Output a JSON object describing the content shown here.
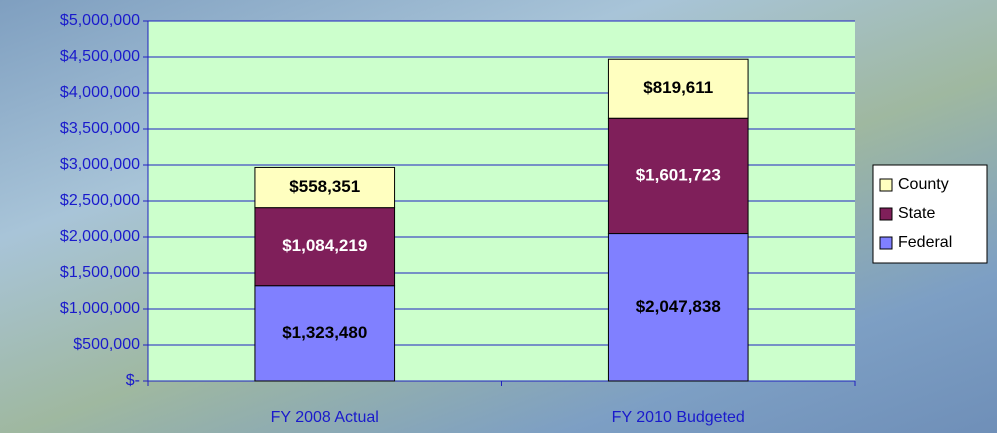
{
  "chart_data": {
    "type": "stacked_bar",
    "categories": [
      "FY 2008 Actual",
      "FY 2010 Budgeted"
    ],
    "series": [
      {
        "name": "Federal",
        "color": "#8080ff",
        "values": [
          1323480,
          2047838
        ],
        "value_labels": [
          "$1,323,480",
          "$2,047,838"
        ]
      },
      {
        "name": "State",
        "color": "#7f1f5a",
        "values": [
          1084219,
          1601723
        ],
        "value_labels": [
          "$1,084,219",
          "$1,601,723"
        ]
      },
      {
        "name": "County",
        "color": "#ffffc0",
        "values": [
          558351,
          819611
        ],
        "value_labels": [
          "$558,351",
          "$819,611"
        ]
      }
    ],
    "ylim": [
      0,
      5000000
    ],
    "yticks": [
      {
        "value": 0,
        "label": "$-"
      },
      {
        "value": 500000,
        "label": "$500,000"
      },
      {
        "value": 1000000,
        "label": "$1,000,000"
      },
      {
        "value": 1500000,
        "label": "$1,500,000"
      },
      {
        "value": 2000000,
        "label": "$2,000,000"
      },
      {
        "value": 2500000,
        "label": "$2,500,000"
      },
      {
        "value": 3000000,
        "label": "$3,000,000"
      },
      {
        "value": 3500000,
        "label": "$3,500,000"
      },
      {
        "value": 4000000,
        "label": "$4,000,000"
      },
      {
        "value": 4500000,
        "label": "$4,500,000"
      },
      {
        "value": 5000000,
        "label": "$5,000,000"
      }
    ],
    "grid": true,
    "legend": "right"
  }
}
